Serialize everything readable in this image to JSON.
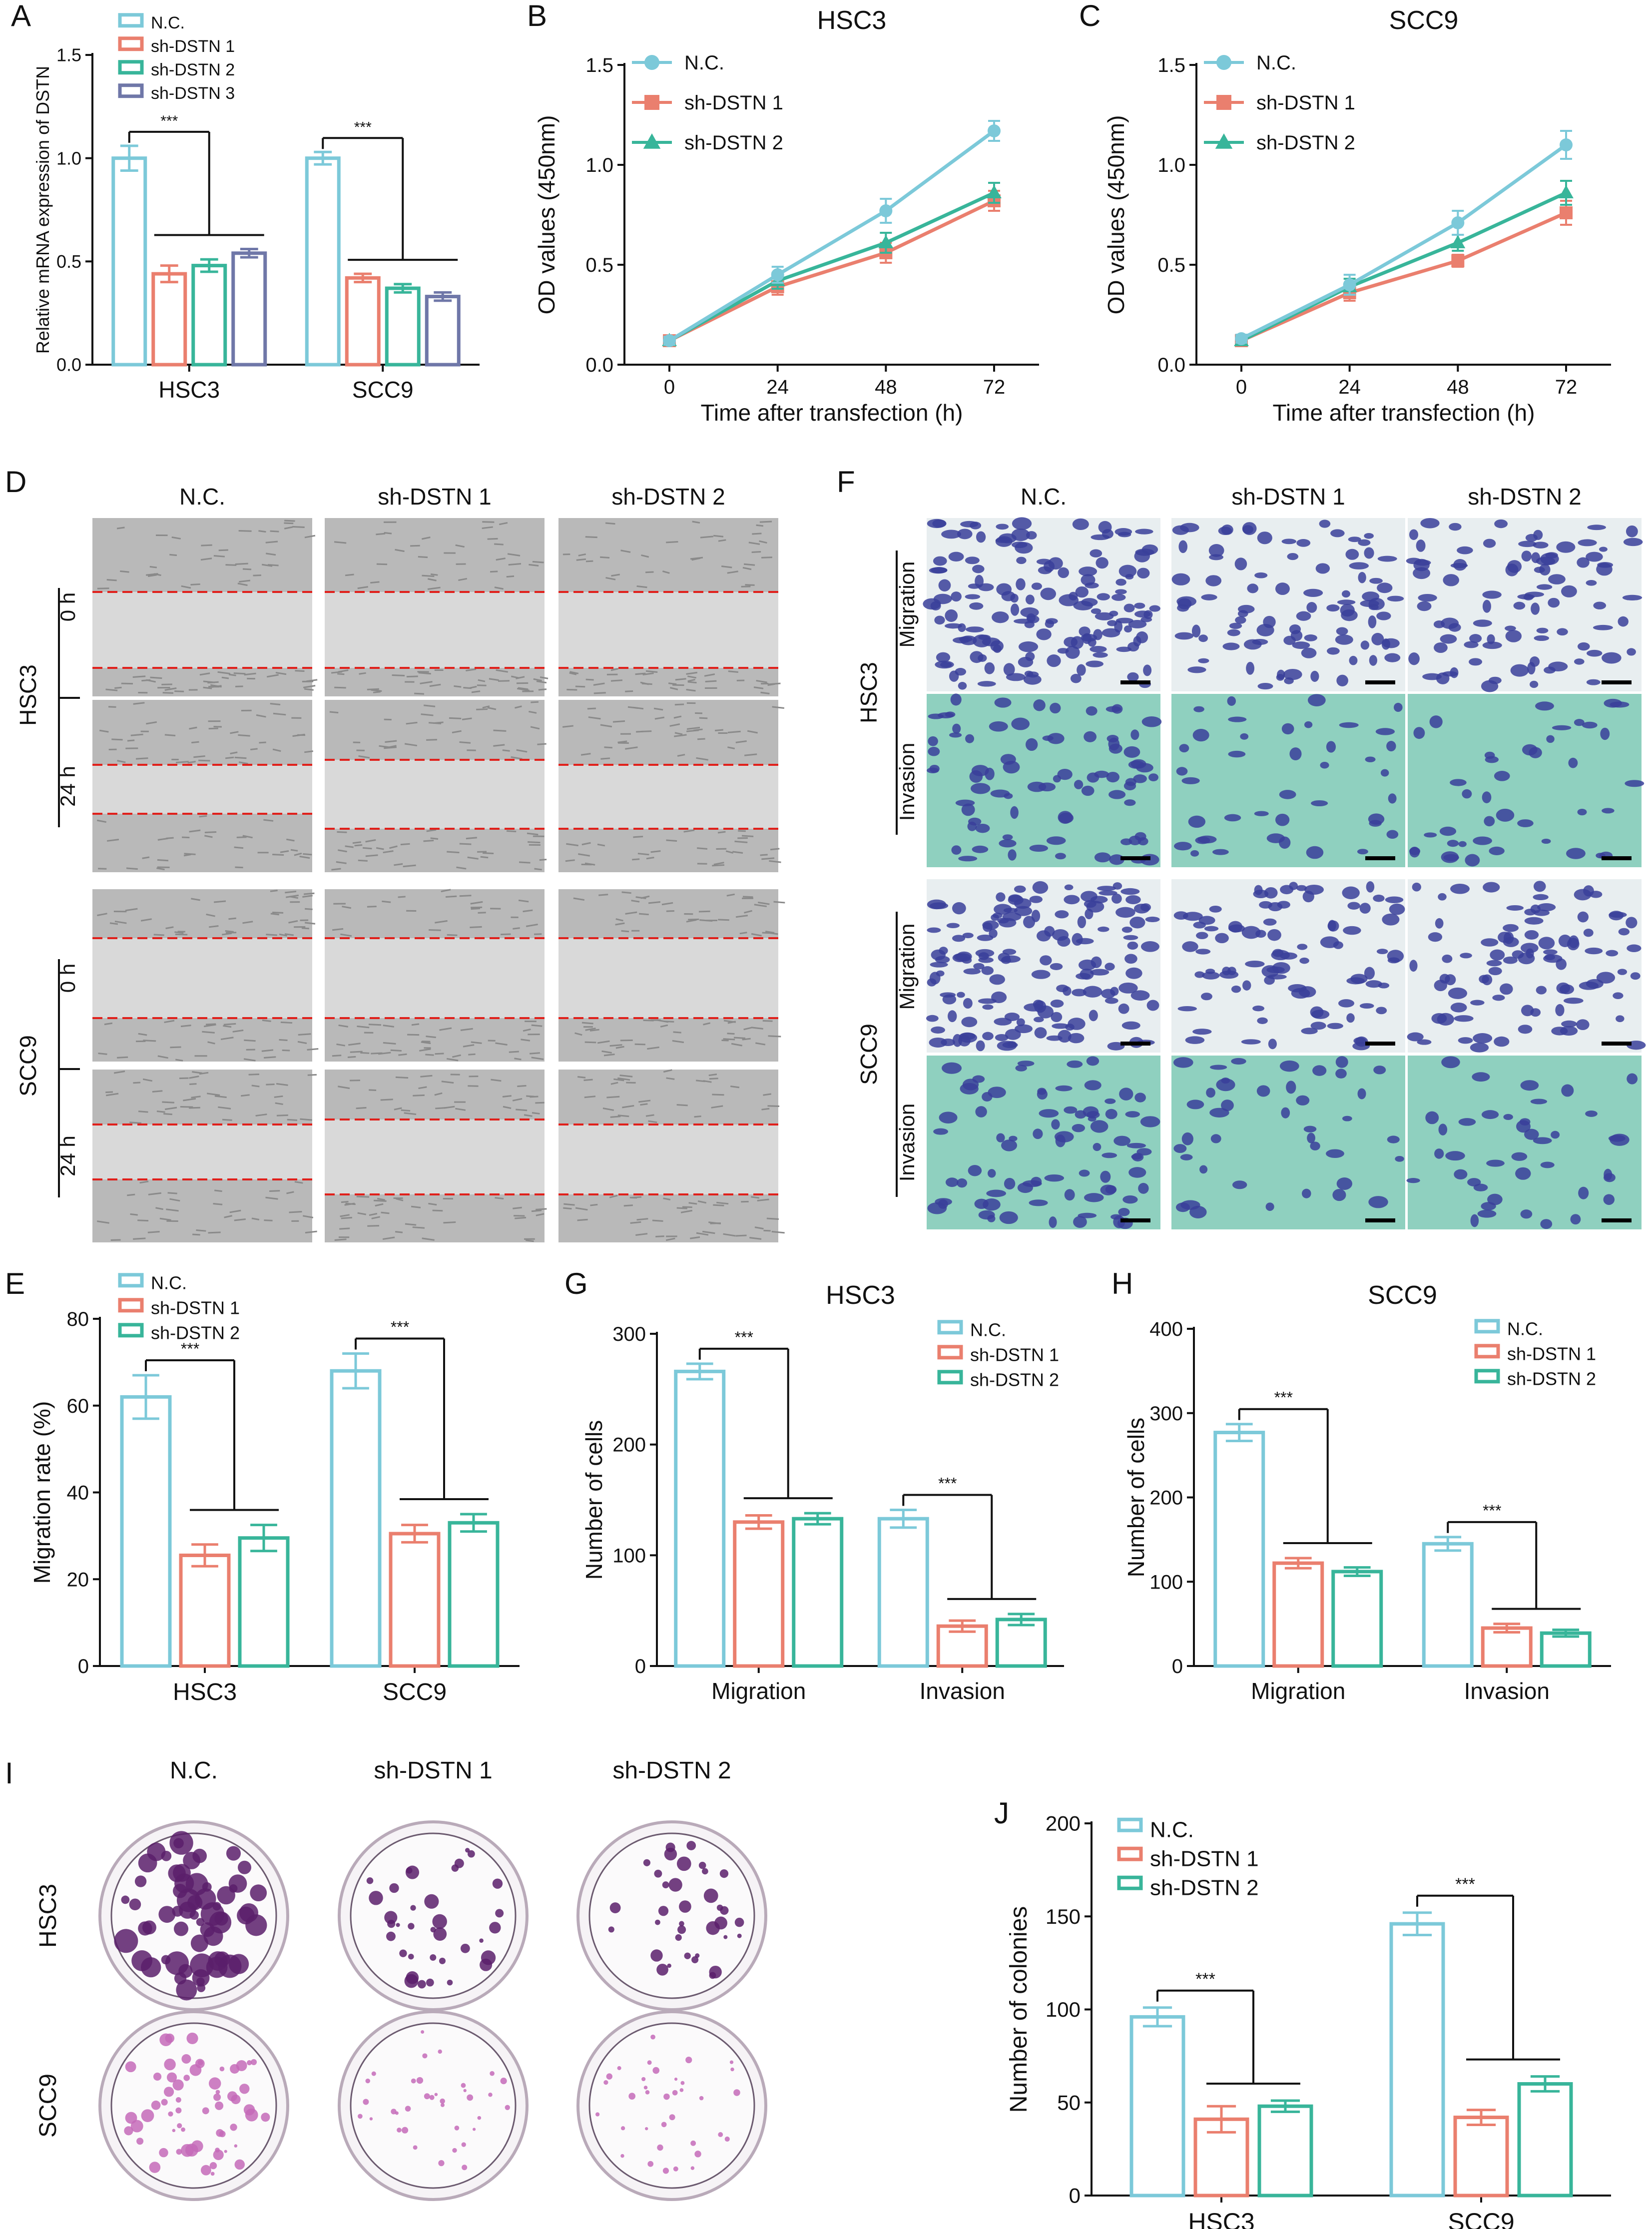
{
  "colors": {
    "nc": "#7cc9d9",
    "sh1": "#ea7f6e",
    "sh2": "#38b59a",
    "sh3": "#6f77a8",
    "scratch_line": "#e0201b",
    "violet": "#3a3f9a",
    "teal_bg": "#8fd0bf",
    "crystal": "#5b1f6b",
    "pink": "#c46ab8"
  },
  "panel_letters": {
    "A": "A",
    "B": "B",
    "C": "C",
    "D": "D",
    "E": "E",
    "F": "F",
    "G": "G",
    "H": "H",
    "I": "I",
    "J": "J"
  },
  "significance": "***",
  "groups": [
    "N.C.",
    "sh-DSTN 1",
    "sh-DSTN 2"
  ],
  "cell_lines": [
    "HSC3",
    "SCC9"
  ],
  "scratch_times": [
    "0 h",
    "24 h"
  ],
  "transwell_assays": [
    "Migration",
    "Invasion"
  ],
  "chart_data": [
    {
      "id": "A",
      "type": "bar",
      "title": "",
      "categories": [
        "HSC3",
        "SCC9"
      ],
      "series": [
        {
          "name": "N.C.",
          "values": [
            1.0,
            1.0
          ],
          "errors": [
            0.06,
            0.03
          ]
        },
        {
          "name": "sh-DSTN 1",
          "values": [
            0.44,
            0.42
          ],
          "errors": [
            0.04,
            0.02
          ]
        },
        {
          "name": "sh-DSTN 2",
          "values": [
            0.48,
            0.37
          ],
          "errors": [
            0.03,
            0.02
          ]
        },
        {
          "name": "sh-DSTN 3",
          "values": [
            0.54,
            0.33
          ],
          "errors": [
            0.02,
            0.02
          ]
        }
      ],
      "xlabel": "",
      "ylabel": "Relative mRNA expression of DSTN",
      "ylim": [
        0,
        1.5
      ],
      "yticks": [
        "0.0",
        "0.5",
        "1.0",
        "1.5"
      ]
    },
    {
      "id": "B",
      "type": "line",
      "title": "HSC3",
      "x": [
        0,
        24,
        48,
        72
      ],
      "series": [
        {
          "name": "N.C.",
          "values": [
            0.12,
            0.45,
            0.77,
            1.17
          ],
          "errors": [
            0.02,
            0.04,
            0.06,
            0.05
          ]
        },
        {
          "name": "sh-DSTN 1",
          "values": [
            0.12,
            0.39,
            0.56,
            0.82
          ],
          "errors": [
            0.02,
            0.04,
            0.05,
            0.05
          ]
        },
        {
          "name": "sh-DSTN 2",
          "values": [
            0.12,
            0.42,
            0.61,
            0.86
          ],
          "errors": [
            0.02,
            0.04,
            0.05,
            0.05
          ]
        }
      ],
      "xlabel": "Time after transfection (h)",
      "ylabel": "OD values (450nm)",
      "ylim": [
        0,
        1.5
      ],
      "yticks": [
        "0.0",
        "0.5",
        "1.0",
        "1.5"
      ],
      "xticks": [
        "0",
        "24",
        "48",
        "72"
      ]
    },
    {
      "id": "C",
      "type": "line",
      "title": "SCC9",
      "x": [
        0,
        24,
        48,
        72
      ],
      "series": [
        {
          "name": "N.C.",
          "values": [
            0.13,
            0.4,
            0.71,
            1.1
          ],
          "errors": [
            0.02,
            0.05,
            0.06,
            0.07
          ]
        },
        {
          "name": "sh-DSTN 1",
          "values": [
            0.12,
            0.36,
            0.52,
            0.76
          ],
          "errors": [
            0.02,
            0.04,
            0.03,
            0.06
          ]
        },
        {
          "name": "sh-DSTN 2",
          "values": [
            0.12,
            0.39,
            0.61,
            0.86
          ],
          "errors": [
            0.02,
            0.04,
            0.04,
            0.06
          ]
        }
      ],
      "xlabel": "Time after transfection (h)",
      "ylabel": "OD values (450nm)",
      "ylim": [
        0,
        1.5
      ],
      "yticks": [
        "0.0",
        "0.5",
        "1.0",
        "1.5"
      ],
      "xticks": [
        "0",
        "24",
        "48",
        "72"
      ]
    },
    {
      "id": "E",
      "type": "bar",
      "title": "",
      "categories": [
        "HSC3",
        "SCC9"
      ],
      "series": [
        {
          "name": "N.C.",
          "values": [
            62,
            68
          ],
          "errors": [
            5,
            4
          ]
        },
        {
          "name": "sh-DSTN 1",
          "values": [
            25.5,
            30.5
          ],
          "errors": [
            2.5,
            2
          ]
        },
        {
          "name": "sh-DSTN 2",
          "values": [
            29.5,
            33
          ],
          "errors": [
            3,
            2
          ]
        }
      ],
      "xlabel": "",
      "ylabel": "Migration rate (%)",
      "ylim": [
        0,
        80
      ],
      "yticks": [
        "0",
        "20",
        "40",
        "60",
        "80"
      ]
    },
    {
      "id": "G",
      "type": "bar",
      "title": "HSC3",
      "categories": [
        "Migration",
        "Invasion"
      ],
      "series": [
        {
          "name": "N.C.",
          "values": [
            266,
            133
          ],
          "errors": [
            7,
            8
          ]
        },
        {
          "name": "sh-DSTN 1",
          "values": [
            130,
            36
          ],
          "errors": [
            6,
            5
          ]
        },
        {
          "name": "sh-DSTN 2",
          "values": [
            133,
            42
          ],
          "errors": [
            5,
            5
          ]
        }
      ],
      "xlabel": "",
      "ylabel": "Number of cells",
      "ylim": [
        0,
        300
      ],
      "yticks": [
        "0",
        "100",
        "200",
        "300"
      ]
    },
    {
      "id": "H",
      "type": "bar",
      "title": "SCC9",
      "categories": [
        "Migration",
        "Invasion"
      ],
      "series": [
        {
          "name": "N.C.",
          "values": [
            277,
            145
          ],
          "errors": [
            10,
            8
          ]
        },
        {
          "name": "sh-DSTN 1",
          "values": [
            122,
            45
          ],
          "errors": [
            6,
            5
          ]
        },
        {
          "name": "sh-DSTN 2",
          "values": [
            112,
            39
          ],
          "errors": [
            5,
            4
          ]
        }
      ],
      "xlabel": "",
      "ylabel": "Number of cells",
      "ylim": [
        0,
        400
      ],
      "yticks": [
        "0",
        "100",
        "200",
        "300",
        "400"
      ]
    },
    {
      "id": "J",
      "type": "bar",
      "title": "",
      "categories": [
        "HSC3",
        "SCC9"
      ],
      "series": [
        {
          "name": "N.C.",
          "values": [
            96,
            146
          ],
          "errors": [
            5,
            6
          ]
        },
        {
          "name": "sh-DSTN 1",
          "values": [
            41,
            42
          ],
          "errors": [
            7,
            4
          ]
        },
        {
          "name": "sh-DSTN 2",
          "values": [
            48,
            60
          ],
          "errors": [
            3,
            4
          ]
        }
      ],
      "xlabel": "",
      "ylabel": "Number of colonies",
      "ylim": [
        0,
        200
      ],
      "yticks": [
        "0",
        "50",
        "100",
        "150",
        "200"
      ]
    }
  ]
}
